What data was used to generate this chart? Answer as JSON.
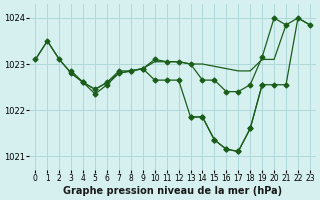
{
  "title": "Graphe pression niveau de la mer (hPa)",
  "xlabel_hours": [
    0,
    1,
    2,
    3,
    4,
    5,
    6,
    7,
    8,
    9,
    10,
    11,
    12,
    13,
    14,
    15,
    16,
    17,
    18,
    19,
    20,
    21,
    22,
    23
  ],
  "ylim": [
    1020.7,
    1024.3
  ],
  "yticks": [
    1021,
    1022,
    1023,
    1024
  ],
  "background_color": "#d6f0f0",
  "grid_color": "#b0d8d8",
  "line_color": "#1a5e1a",
  "line1": [
    1023.1,
    1023.5,
    1023.1,
    1022.8,
    1022.6,
    1022.45,
    1022.6,
    1022.8,
    1022.85,
    1022.9,
    1023.05,
    1023.05,
    1023.05,
    1023.0,
    1023.0,
    1022.95,
    1022.9,
    1022.85,
    1022.85,
    1023.1,
    1023.1,
    1023.85,
    1024.0,
    1023.85
  ],
  "line2": [
    1023.1,
    1023.5,
    1023.1,
    1022.8,
    1022.6,
    1022.45,
    1022.6,
    1022.85,
    1022.85,
    1022.9,
    1023.1,
    1023.05,
    1023.05,
    1023.0,
    1022.65,
    1022.65,
    1022.4,
    1022.4,
    1022.55,
    1023.15,
    1024.0,
    1023.85,
    null,
    null
  ],
  "line3": [
    null,
    null,
    null,
    1022.85,
    1022.6,
    1022.35,
    1022.55,
    1022.8,
    1022.85,
    1022.9,
    1022.65,
    1022.65,
    1022.65,
    1021.85,
    1021.85,
    1021.35,
    1021.15,
    1021.1,
    1021.6,
    1022.55,
    null,
    null,
    null,
    null
  ],
  "line4": [
    null,
    null,
    null,
    null,
    null,
    null,
    null,
    null,
    null,
    null,
    null,
    null,
    null,
    1021.85,
    1021.85,
    1021.35,
    1021.15,
    1021.1,
    1021.6,
    1022.55,
    1022.55,
    1022.55,
    1024.0,
    1023.85
  ]
}
